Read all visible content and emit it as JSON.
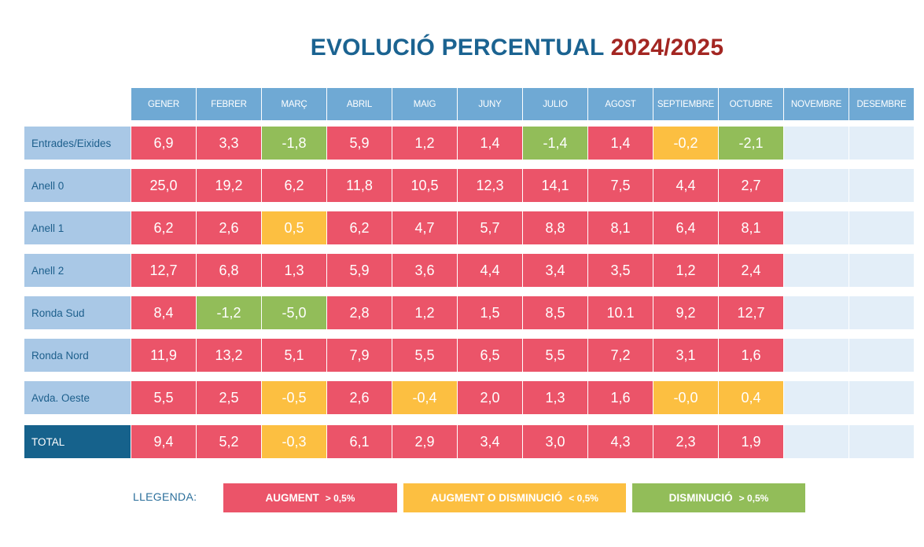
{
  "title": {
    "main": "EVOLUCIÓ PERCENTUAL",
    "period": "2024/2025"
  },
  "colors": {
    "increase": "#eb5469",
    "neutral": "#fcbf41",
    "decrease": "#92bd59",
    "empty": "#e3eef8",
    "header": "#6fa9d4",
    "row_label": "#a9c8e6",
    "total_label": "#16628c",
    "title_blue": "#1b6391",
    "title_red": "#a32622"
  },
  "chart_data": {
    "type": "table",
    "title": "EVOLUCIÓ PERCENTUAL 2024/2025",
    "columns": [
      "GENER",
      "FEBRER",
      "MARÇ",
      "ABRIL",
      "MAIG",
      "JUNY",
      "JULIO",
      "AGOST",
      "SEPTIEMBRE",
      "OCTUBRE",
      "NOVEMBRE",
      "DESEMBRE"
    ],
    "rows": [
      {
        "label": "Entrades/Eixides",
        "values": [
          "6,9",
          "3,3",
          "-1,8",
          "5,9",
          "1,2",
          "1,4",
          "-1,4",
          "1,4",
          "-0,2",
          "-2,1",
          "",
          ""
        ],
        "status": [
          "up",
          "up",
          "down",
          "up",
          "up",
          "up",
          "down",
          "up",
          "mid",
          "down",
          "none",
          "none"
        ]
      },
      {
        "label": "Anell 0",
        "values": [
          "25,0",
          "19,2",
          "6,2",
          "11,8",
          "10,5",
          "12,3",
          "14,1",
          "7,5",
          "4,4",
          "2,7",
          "",
          ""
        ],
        "status": [
          "up",
          "up",
          "up",
          "up",
          "up",
          "up",
          "up",
          "up",
          "up",
          "up",
          "none",
          "none"
        ]
      },
      {
        "label": "Anell 1",
        "values": [
          "6,2",
          "2,6",
          "0,5",
          "6,2",
          "4,7",
          "5,7",
          "8,8",
          "8,1",
          "6,4",
          "8,1",
          "",
          ""
        ],
        "status": [
          "up",
          "up",
          "mid",
          "up",
          "up",
          "up",
          "up",
          "up",
          "up",
          "up",
          "none",
          "none"
        ]
      },
      {
        "label": "Anell 2",
        "values": [
          "12,7",
          "6,8",
          "1,3",
          "5,9",
          "3,6",
          "4,4",
          "3,4",
          "3,5",
          "1,2",
          "2,4",
          "",
          ""
        ],
        "status": [
          "up",
          "up",
          "up",
          "up",
          "up",
          "up",
          "up",
          "up",
          "up",
          "up",
          "none",
          "none"
        ]
      },
      {
        "label": "Ronda Sud",
        "values": [
          "8,4",
          "-1,2",
          "-5,0",
          "2,8",
          "1,2",
          "1,5",
          "8,5",
          "10.1",
          "9,2",
          "12,7",
          "",
          ""
        ],
        "status": [
          "up",
          "down",
          "down",
          "up",
          "up",
          "up",
          "up",
          "up",
          "up",
          "up",
          "none",
          "none"
        ]
      },
      {
        "label": "Ronda Nord",
        "values": [
          "11,9",
          "13,2",
          "5,1",
          "7,9",
          "5,5",
          "6,5",
          "5,5",
          "7,2",
          "3,1",
          "1,6",
          "",
          ""
        ],
        "status": [
          "up",
          "up",
          "up",
          "up",
          "up",
          "up",
          "up",
          "up",
          "up",
          "up",
          "none",
          "none"
        ]
      },
      {
        "label": "Avda. Oeste",
        "values": [
          "5,5",
          "2,5",
          "-0,5",
          "2,6",
          "-0,4",
          "2,0",
          "1,3",
          "1,6",
          "-0,0",
          "0,4",
          "",
          ""
        ],
        "status": [
          "up",
          "up",
          "mid",
          "up",
          "mid",
          "up",
          "up",
          "up",
          "mid",
          "mid",
          "none",
          "none"
        ]
      },
      {
        "label": "TOTAL",
        "values": [
          "9,4",
          "5,2",
          "-0,3",
          "6,1",
          "2,9",
          "3,4",
          "3,0",
          "4,3",
          "2,3",
          "1,9",
          "",
          ""
        ],
        "status": [
          "up",
          "up",
          "mid",
          "up",
          "up",
          "up",
          "up",
          "up",
          "up",
          "up",
          "none",
          "none"
        ],
        "is_total": true
      }
    ]
  },
  "legend": {
    "label": "LLEGENDA:",
    "items": [
      {
        "text": "AUGMENT",
        "threshold": "> 0,5%",
        "status": "up"
      },
      {
        "text": "AUGMENT O DISMINUCIÓ",
        "threshold": "< 0,5%",
        "status": "mid"
      },
      {
        "text": "DISMINUCIÓ",
        "threshold": "> 0,5%",
        "status": "down"
      }
    ]
  }
}
